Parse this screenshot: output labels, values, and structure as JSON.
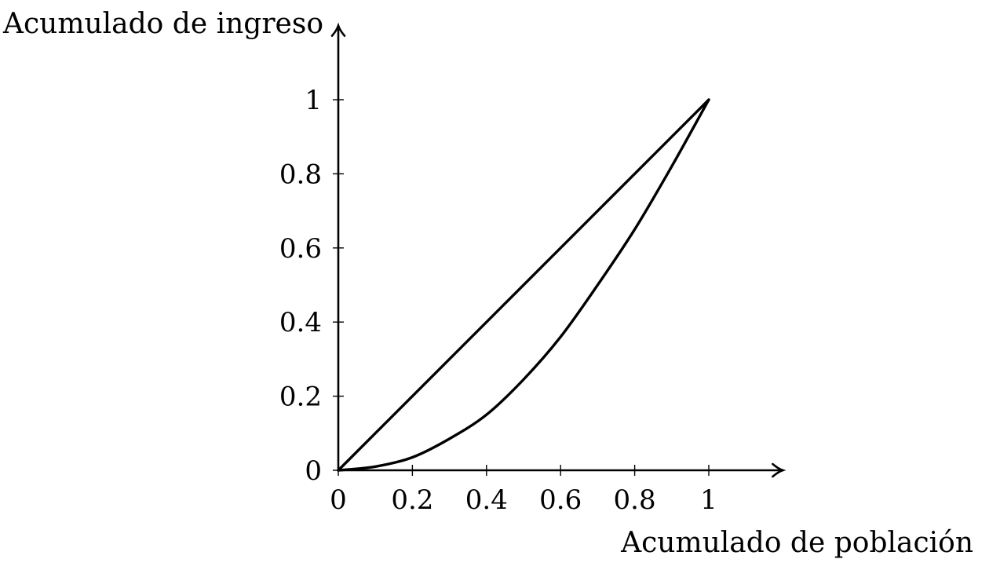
{
  "chart_data": {
    "type": "line",
    "xlabel": "Acumulado de población",
    "ylabel": "Acumulado de ingreso",
    "xlim": [
      0,
      1.2
    ],
    "ylim": [
      0,
      1.2
    ],
    "xticks": [
      "0",
      "0.2",
      "0.4",
      "0.6",
      "0.8",
      "1"
    ],
    "xtick_values": [
      0,
      0.2,
      0.4,
      0.6,
      0.8,
      1
    ],
    "yticks": [
      "0",
      "0.2",
      "0.4",
      "0.6",
      "0.8",
      "1"
    ],
    "ytick_values": [
      0,
      0.2,
      0.4,
      0.6,
      0.8,
      1
    ],
    "grid": false,
    "legend": "none",
    "series": [
      {
        "x": [
          0,
          1
        ],
        "y": [
          0,
          1
        ],
        "color": "#000000"
      },
      {
        "x": [
          0,
          0.1,
          0.2,
          0.3,
          0.4,
          0.5,
          0.6,
          0.7,
          0.8,
          0.9,
          1
        ],
        "y": [
          0,
          0.01,
          0.035,
          0.085,
          0.15,
          0.245,
          0.36,
          0.5,
          0.65,
          0.82,
          1
        ],
        "color": "#000000"
      }
    ]
  }
}
